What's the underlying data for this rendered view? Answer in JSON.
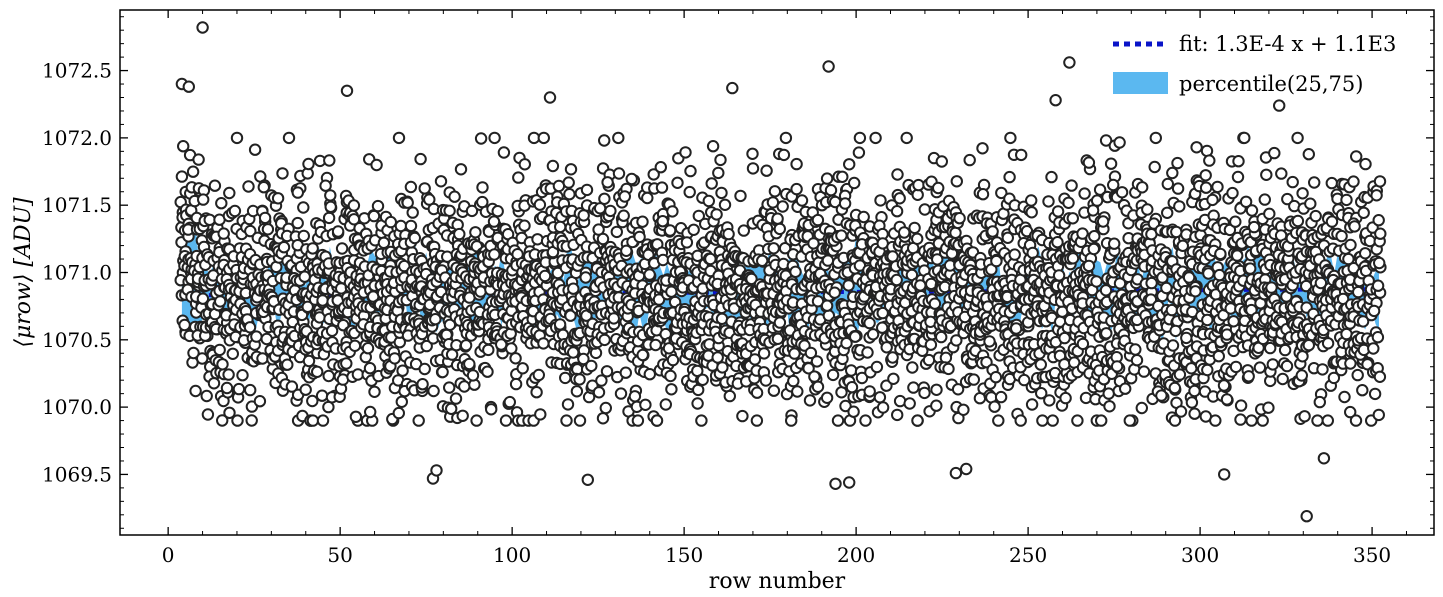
{
  "chart_data": {
    "type": "scatter",
    "title": "",
    "xlabel": "row number",
    "ylabel": "⟨μrow⟩ [ADU]",
    "xlim": [
      -14,
      368
    ],
    "ylim": [
      1069.05,
      1072.95
    ],
    "xticks": [
      0,
      50,
      100,
      150,
      200,
      250,
      300,
      350
    ],
    "yticks": [
      1069.5,
      1070.0,
      1070.5,
      1071.0,
      1071.5,
      1072.0,
      1072.5
    ],
    "grid": false,
    "legend_position": "top-right",
    "colors": {
      "fit_line": "#0a14c8",
      "percentile_band": "#5bb8f0",
      "marker_edge": "#222222",
      "marker_face": "#ffffff"
    },
    "fit": {
      "label": "fit: 1.3E-4 x + 1.1E3",
      "slope": 0.00013,
      "intercept": 1070.83
    },
    "percentile": {
      "label": "percentile(25,75)",
      "lower_start": 1070.66,
      "upper_start": 1071.06
    },
    "scatter": {
      "x_range": [
        4,
        352
      ],
      "points_per_row": 12,
      "center": 1070.84,
      "spread": 0.42,
      "notable_points": [
        {
          "x": 10,
          "y": 1072.82
        },
        {
          "x": 4,
          "y": 1072.4
        },
        {
          "x": 6,
          "y": 1072.38
        },
        {
          "x": 52,
          "y": 1072.35
        },
        {
          "x": 111,
          "y": 1072.3
        },
        {
          "x": 164,
          "y": 1072.37
        },
        {
          "x": 192,
          "y": 1072.53
        },
        {
          "x": 262,
          "y": 1072.56
        },
        {
          "x": 258,
          "y": 1072.28
        },
        {
          "x": 323,
          "y": 1072.24
        },
        {
          "x": 77,
          "y": 1069.47
        },
        {
          "x": 78,
          "y": 1069.53
        },
        {
          "x": 122,
          "y": 1069.46
        },
        {
          "x": 194,
          "y": 1069.43
        },
        {
          "x": 198,
          "y": 1069.44
        },
        {
          "x": 229,
          "y": 1069.51
        },
        {
          "x": 232,
          "y": 1069.54
        },
        {
          "x": 307,
          "y": 1069.5
        },
        {
          "x": 331,
          "y": 1069.19
        },
        {
          "x": 336,
          "y": 1069.62
        }
      ]
    }
  }
}
